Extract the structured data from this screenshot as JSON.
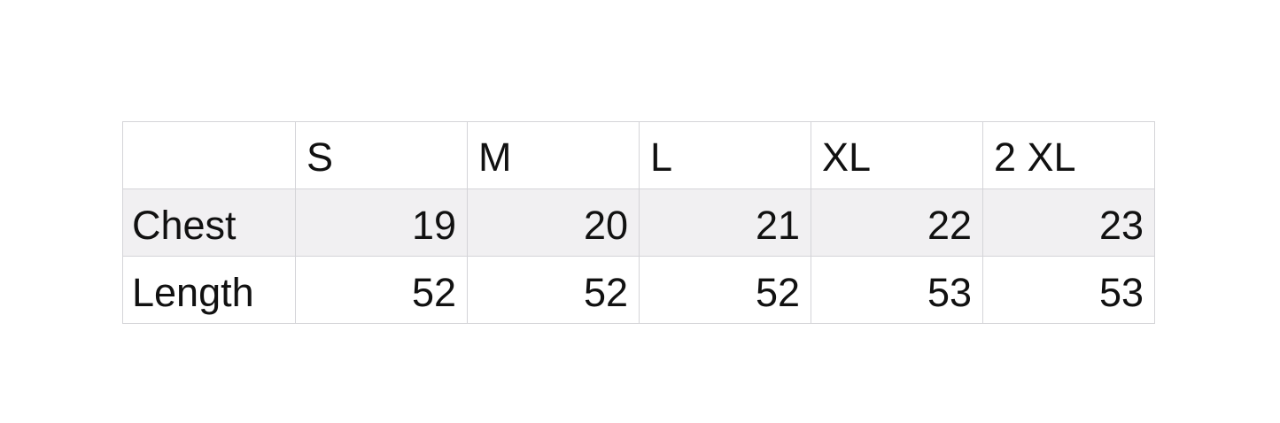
{
  "size_chart": {
    "header": [
      "",
      "S",
      "M",
      "L",
      "XL",
      "2 XL"
    ],
    "rows": [
      {
        "label": "Chest",
        "values": [
          "19",
          "20",
          "21",
          "22",
          "23"
        ]
      },
      {
        "label": "Length",
        "values": [
          "52",
          "52",
          "52",
          "53",
          "53"
        ]
      }
    ],
    "shaded_row_color": "#f1f0f2"
  }
}
